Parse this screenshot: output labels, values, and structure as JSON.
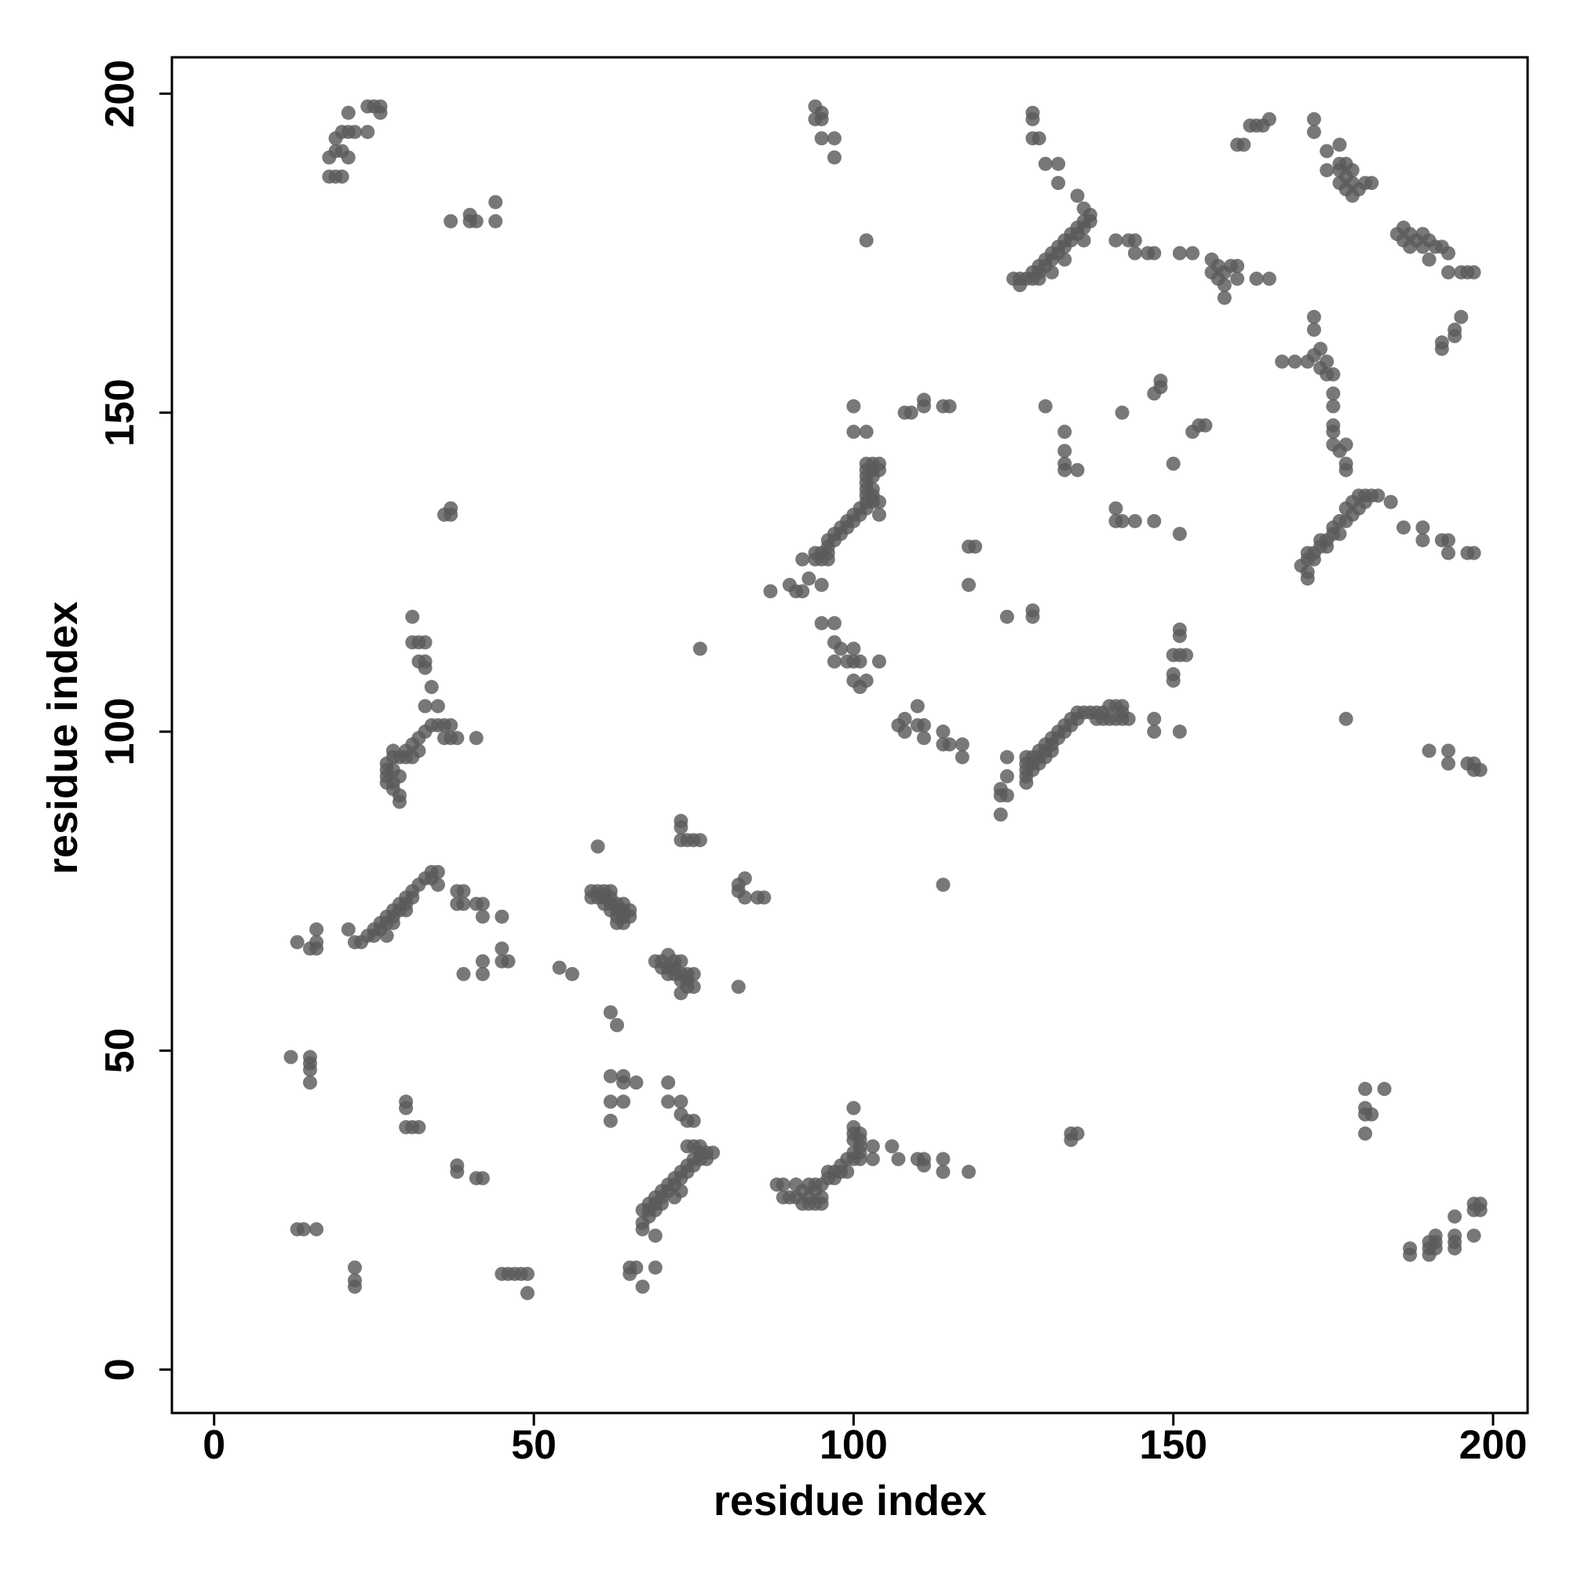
{
  "chart_data": {
    "type": "scatter",
    "x_label": "residue index",
    "y_label": "residue index",
    "color": "#5a5a5a",
    "xlim": [
      -6.6,
      205.4
    ],
    "ylim": [
      -6.8,
      205.7
    ],
    "xticks": [
      0,
      50,
      100,
      150,
      200
    ],
    "yticks": [
      0,
      50,
      100,
      150,
      200
    ],
    "x": [
      18,
      19,
      20,
      18,
      19,
      20,
      21,
      19,
      20,
      21,
      22,
      21,
      24,
      24,
      25,
      26,
      26,
      37,
      40,
      41,
      40,
      44,
      44,
      36,
      37,
      37,
      31,
      31,
      32,
      33,
      32,
      33,
      33,
      34,
      33,
      35,
      34,
      35,
      36,
      37,
      36,
      37,
      38,
      41,
      33,
      32,
      31,
      30,
      29,
      30,
      28,
      27,
      27,
      28,
      27,
      29,
      27,
      28,
      28,
      29,
      29,
      28,
      31,
      32,
      13,
      15,
      16,
      16,
      16,
      21,
      22,
      23,
      24,
      25,
      25,
      26,
      26,
      27,
      27,
      28,
      28,
      29,
      29,
      30,
      30,
      31,
      31,
      32,
      33,
      34,
      34,
      35,
      35,
      38,
      39,
      38,
      39,
      41,
      42,
      42,
      45,
      39,
      42,
      42,
      45,
      45,
      46,
      27,
      28,
      30,
      12,
      15,
      15,
      15,
      15,
      30,
      30,
      30,
      31,
      32,
      38,
      38,
      41,
      42,
      13,
      14,
      16,
      22,
      22,
      22,
      45,
      46,
      47,
      48,
      49,
      49,
      54,
      56,
      59,
      60,
      61,
      62,
      59,
      60,
      61,
      62,
      61,
      62,
      63,
      64,
      62,
      63,
      64,
      65,
      63,
      64,
      65,
      63,
      64,
      60,
      62,
      63,
      69,
      70,
      71,
      70,
      71,
      72,
      72,
      73,
      71,
      72,
      73,
      73,
      74,
      74,
      74,
      75,
      75,
      73,
      73,
      73,
      73,
      74,
      75,
      76,
      76,
      82,
      82,
      83,
      83,
      86,
      85,
      82,
      62,
      64,
      64,
      66,
      62,
      64,
      62,
      71,
      71,
      73,
      73,
      74,
      75,
      67,
      68,
      68,
      69,
      69,
      70,
      70,
      71,
      71,
      72,
      72,
      73,
      73,
      74,
      74,
      75,
      75,
      76,
      76,
      77,
      78,
      77,
      67,
      67,
      69,
      68,
      69,
      70,
      74,
      75,
      76,
      72,
      73,
      65,
      66,
      69,
      65,
      67,
      88,
      89,
      89,
      90,
      91,
      91,
      92,
      92,
      93,
      93,
      93,
      94,
      94,
      94,
      95,
      95,
      95,
      96,
      96,
      97,
      97,
      98,
      98,
      99,
      99,
      100,
      100,
      101,
      101,
      100,
      100,
      100,
      101,
      101,
      101,
      100,
      103,
      103,
      106,
      107,
      110,
      111,
      111,
      114,
      114,
      118,
      94,
      95,
      95,
      94,
      95,
      97,
      97,
      102,
      87,
      90,
      91,
      92,
      93,
      92,
      94,
      94,
      95,
      95,
      96,
      96,
      96,
      97,
      97,
      98,
      98,
      99,
      99,
      100,
      100,
      101,
      101,
      102,
      102,
      103,
      103,
      102,
      102,
      103,
      102,
      103,
      102,
      103,
      102,
      103,
      102,
      104,
      104,
      104,
      104,
      95,
      96,
      100,
      100,
      102,
      95,
      97,
      97,
      98,
      97,
      99,
      100,
      100,
      101,
      100,
      101,
      102,
      104,
      107,
      108,
      108,
      110,
      110,
      111,
      111,
      114,
      114,
      115,
      117,
      117,
      108,
      109,
      111,
      111,
      114,
      115,
      118,
      119,
      118,
      114,
      123,
      123,
      123,
      124,
      124,
      124,
      127,
      127,
      127,
      127,
      127,
      128,
      128,
      128,
      129,
      129,
      129,
      130,
      130,
      130,
      131,
      131,
      131,
      132,
      132,
      133,
      133,
      134,
      134,
      135,
      135,
      136,
      137,
      138,
      138,
      139,
      139,
      140,
      140,
      141,
      141,
      142,
      142,
      142,
      143,
      147,
      147,
      151,
      124,
      128,
      128,
      130,
      133,
      133,
      133,
      133,
      135,
      141,
      141,
      142,
      144,
      142,
      147,
      147,
      148,
      148,
      150,
      151,
      153,
      154,
      155,
      151,
      151,
      150,
      151,
      152,
      150,
      150,
      128,
      128,
      128,
      129,
      130,
      132,
      132,
      125,
      126,
      126,
      127,
      128,
      128,
      129,
      129,
      130,
      130,
      131,
      131,
      132,
      132,
      133,
      133,
      134,
      134,
      135,
      135,
      136,
      136,
      137,
      137,
      136,
      135,
      136,
      129,
      131,
      133,
      141,
      143,
      144,
      144,
      146,
      147,
      151,
      153,
      156,
      157,
      158,
      156,
      157,
      159,
      160,
      158,
      158,
      160,
      163,
      165,
      160,
      161,
      162,
      163,
      164,
      165,
      172,
      172,
      174,
      174,
      176,
      176,
      176,
      176,
      177,
      177,
      177,
      178,
      178,
      179,
      180,
      178,
      181,
      185,
      186,
      186,
      187,
      187,
      188,
      189,
      189,
      190,
      190,
      192,
      193,
      193,
      195,
      196,
      197,
      191,
      172,
      172,
      195,
      194,
      194,
      192,
      192,
      167,
      169,
      171,
      172,
      173,
      173,
      174,
      175,
      174,
      175,
      175,
      175,
      175,
      175,
      176,
      177,
      177,
      177,
      170,
      171,
      171,
      171,
      172,
      172,
      173,
      173,
      174,
      174,
      175,
      175,
      176,
      176,
      177,
      177,
      178,
      178,
      179,
      179,
      180,
      180,
      181,
      182,
      184,
      186,
      189,
      189,
      192,
      193,
      193,
      196,
      197,
      171,
      177,
      180,
      180,
      180,
      181,
      180,
      183,
      134,
      135,
      134,
      190,
      193,
      193,
      196,
      197,
      197,
      198,
      187,
      187,
      190,
      190,
      190,
      191,
      191,
      191,
      194,
      194,
      194,
      194,
      197,
      197,
      197,
      198,
      198
    ],
    "values": [
      187,
      187,
      187,
      190,
      191,
      191,
      190,
      193,
      194,
      194,
      194,
      197,
      194,
      198,
      198,
      198,
      197,
      180,
      180,
      180,
      181,
      180,
      183,
      134,
      134,
      135,
      118,
      114,
      114,
      114,
      111,
      111,
      110,
      107,
      104,
      104,
      101,
      101,
      101,
      101,
      99,
      99,
      99,
      99,
      100,
      99,
      98,
      97,
      96,
      96,
      96,
      95,
      94,
      94,
      93,
      93,
      92,
      92,
      91,
      90,
      89,
      97,
      96,
      97,
      67,
      66,
      66,
      67,
      69,
      69,
      67,
      67,
      68,
      68,
      69,
      69,
      70,
      70,
      71,
      71,
      72,
      72,
      73,
      73,
      74,
      74,
      75,
      76,
      77,
      77,
      78,
      78,
      76,
      75,
      75,
      73,
      73,
      73,
      73,
      71,
      71,
      62,
      62,
      64,
      64,
      66,
      64,
      68,
      70,
      72,
      49,
      49,
      48,
      47,
      45,
      42,
      41,
      38,
      38,
      38,
      32,
      31,
      30,
      30,
      22,
      22,
      22,
      16,
      14,
      13,
      15,
      15,
      15,
      15,
      15,
      12,
      63,
      62,
      75,
      75,
      75,
      75,
      74,
      74,
      74,
      74,
      73,
      73,
      73,
      73,
      72,
      72,
      72,
      72,
      71,
      71,
      71,
      70,
      70,
      82,
      56,
      54,
      64,
      64,
      65,
      63,
      63,
      64,
      63,
      64,
      62,
      62,
      62,
      61,
      62,
      61,
      60,
      60,
      62,
      59,
      86,
      85,
      83,
      83,
      83,
      83,
      113,
      76,
      75,
      77,
      74,
      74,
      74,
      60,
      46,
      46,
      45,
      45,
      42,
      42,
      39,
      45,
      42,
      42,
      40,
      39,
      39,
      25,
      25,
      26,
      26,
      27,
      27,
      28,
      28,
      29,
      29,
      30,
      30,
      31,
      31,
      32,
      32,
      33,
      33,
      34,
      34,
      34,
      33,
      23,
      22,
      21,
      24,
      25,
      26,
      35,
      35,
      35,
      27,
      28,
      16,
      16,
      16,
      15,
      13,
      29,
      29,
      27,
      27,
      27,
      29,
      26,
      28,
      26,
      27,
      29,
      26,
      28,
      29,
      27,
      26,
      29,
      30,
      31,
      30,
      31,
      31,
      32,
      31,
      33,
      33,
      34,
      33,
      34,
      36,
      37,
      38,
      36,
      35,
      37,
      41,
      35,
      33,
      35,
      33,
      33,
      33,
      32,
      33,
      31,
      31,
      198,
      197,
      196,
      196,
      193,
      193,
      190,
      177,
      122,
      123,
      122,
      122,
      124,
      127,
      127,
      128,
      128,
      127,
      128,
      129,
      130,
      130,
      131,
      131,
      132,
      132,
      133,
      133,
      134,
      134,
      135,
      135,
      136,
      136,
      137,
      137,
      138,
      138,
      139,
      140,
      140,
      141,
      141,
      142,
      142,
      142,
      141,
      136,
      134,
      123,
      127,
      151,
      147,
      147,
      117,
      117,
      114,
      113,
      111,
      111,
      113,
      111,
      111,
      108,
      107,
      108,
      111,
      101,
      102,
      100,
      104,
      101,
      101,
      99,
      100,
      98,
      98,
      98,
      96,
      150,
      150,
      151,
      152,
      151,
      151,
      129,
      129,
      123,
      76,
      87,
      90,
      91,
      90,
      93,
      96,
      92,
      93,
      94,
      95,
      96,
      94,
      95,
      96,
      95,
      96,
      97,
      96,
      97,
      98,
      97,
      98,
      99,
      99,
      100,
      100,
      101,
      101,
      102,
      102,
      103,
      103,
      103,
      102,
      103,
      102,
      103,
      102,
      104,
      102,
      104,
      103,
      102,
      104,
      102,
      102,
      100,
      100,
      118,
      118,
      119,
      151,
      147,
      144,
      142,
      141,
      141,
      135,
      133,
      133,
      133,
      150,
      133,
      153,
      154,
      155,
      142,
      131,
      147,
      148,
      148,
      116,
      115,
      112,
      112,
      112,
      109,
      108,
      197,
      196,
      193,
      193,
      189,
      189,
      186,
      171,
      171,
      170,
      171,
      172,
      171,
      172,
      173,
      173,
      174,
      174,
      175,
      175,
      176,
      176,
      177,
      177,
      178,
      178,
      179,
      179,
      180,
      180,
      181,
      182,
      184,
      177,
      171,
      172,
      174,
      177,
      177,
      177,
      175,
      175,
      175,
      175,
      175,
      174,
      173,
      172,
      172,
      171,
      173,
      173,
      170,
      168,
      171,
      171,
      171,
      192,
      192,
      195,
      195,
      195,
      196,
      196,
      194,
      191,
      188,
      192,
      189,
      188,
      186,
      185,
      187,
      189,
      184,
      186,
      185,
      186,
      188,
      186,
      178,
      177,
      179,
      178,
      176,
      177,
      176,
      178,
      177,
      174,
      176,
      175,
      172,
      172,
      172,
      172,
      176,
      165,
      163,
      165,
      163,
      162,
      161,
      160,
      158,
      158,
      158,
      159,
      157,
      160,
      158,
      156,
      156,
      153,
      151,
      148,
      147,
      145,
      144,
      145,
      142,
      141,
      126,
      125,
      127,
      128,
      128,
      127,
      129,
      130,
      129,
      130,
      131,
      132,
      131,
      133,
      133,
      135,
      134,
      136,
      135,
      137,
      136,
      137,
      137,
      137,
      136,
      132,
      132,
      130,
      130,
      130,
      128,
      128,
      128,
      124,
      102,
      44,
      41,
      40,
      40,
      37,
      44,
      37,
      37,
      36,
      97,
      97,
      95,
      95,
      95,
      94,
      94,
      19,
      18,
      20,
      19,
      18,
      21,
      20,
      19,
      21,
      20,
      19,
      24,
      21,
      25,
      26,
      25,
      26
    ]
  }
}
